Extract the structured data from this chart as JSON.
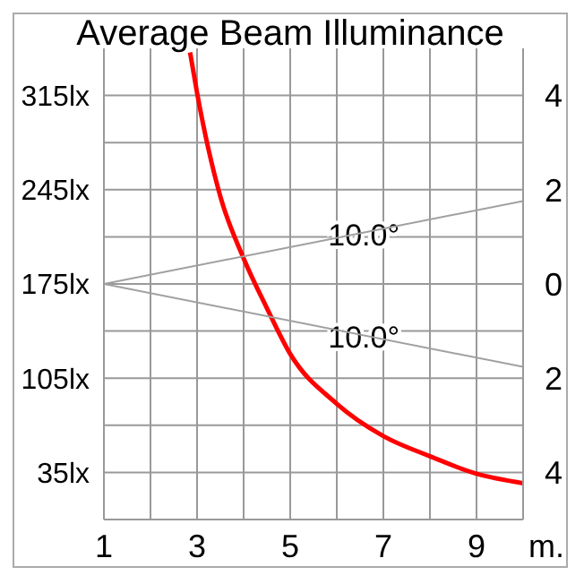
{
  "chart_data": {
    "type": "line",
    "title": "Average Beam Illuminance",
    "xlabel": "m.",
    "xlim": [
      1,
      10
    ],
    "xticks": [
      1,
      {
        "value": 2,
        "label": null
      },
      3,
      {
        "value": 4,
        "label": null
      },
      5,
      {
        "value": 6,
        "label": null
      },
      7,
      {
        "value": 8,
        "label": null
      },
      9
    ],
    "ylim": [
      0,
      350
    ],
    "yticks": [
      {
        "value": 35,
        "label": "35lx"
      },
      {
        "value": 70,
        "label": null
      },
      {
        "value": 105,
        "label": "105lx"
      },
      {
        "value": 140,
        "label": null
      },
      {
        "value": 175,
        "label": "175lx"
      },
      {
        "value": 210,
        "label": null
      },
      {
        "value": 245,
        "label": "245lx"
      },
      {
        "value": 280,
        "label": null
      },
      {
        "value": 315,
        "label": "315lx"
      }
    ],
    "y2lim": [
      -5,
      5
    ],
    "y2ticks": [
      {
        "value": -4,
        "label": "4"
      },
      {
        "value": -2,
        "label": "2"
      },
      0,
      2,
      4
    ],
    "grid": true,
    "marker": "none",
    "series": [
      {
        "color": "#ff0000",
        "x": [
          2.85,
          3,
          3.5,
          4,
          4.5,
          5,
          6,
          7,
          8,
          9,
          10
        ],
        "values": [
          347,
          317,
          240,
          194,
          157,
          123,
          86,
          62,
          47,
          34,
          27
        ]
      },
      {
        "name": "10.0°",
        "color": "#a0a0a0",
        "axis": "y2",
        "x": [
          1,
          10
        ],
        "values": [
          0,
          1.76
        ]
      },
      {
        "name": "10.0°",
        "color": "#a0a0a0",
        "axis": "y2",
        "x": [
          1,
          10
        ],
        "values": [
          0,
          -1.76
        ]
      }
    ]
  }
}
